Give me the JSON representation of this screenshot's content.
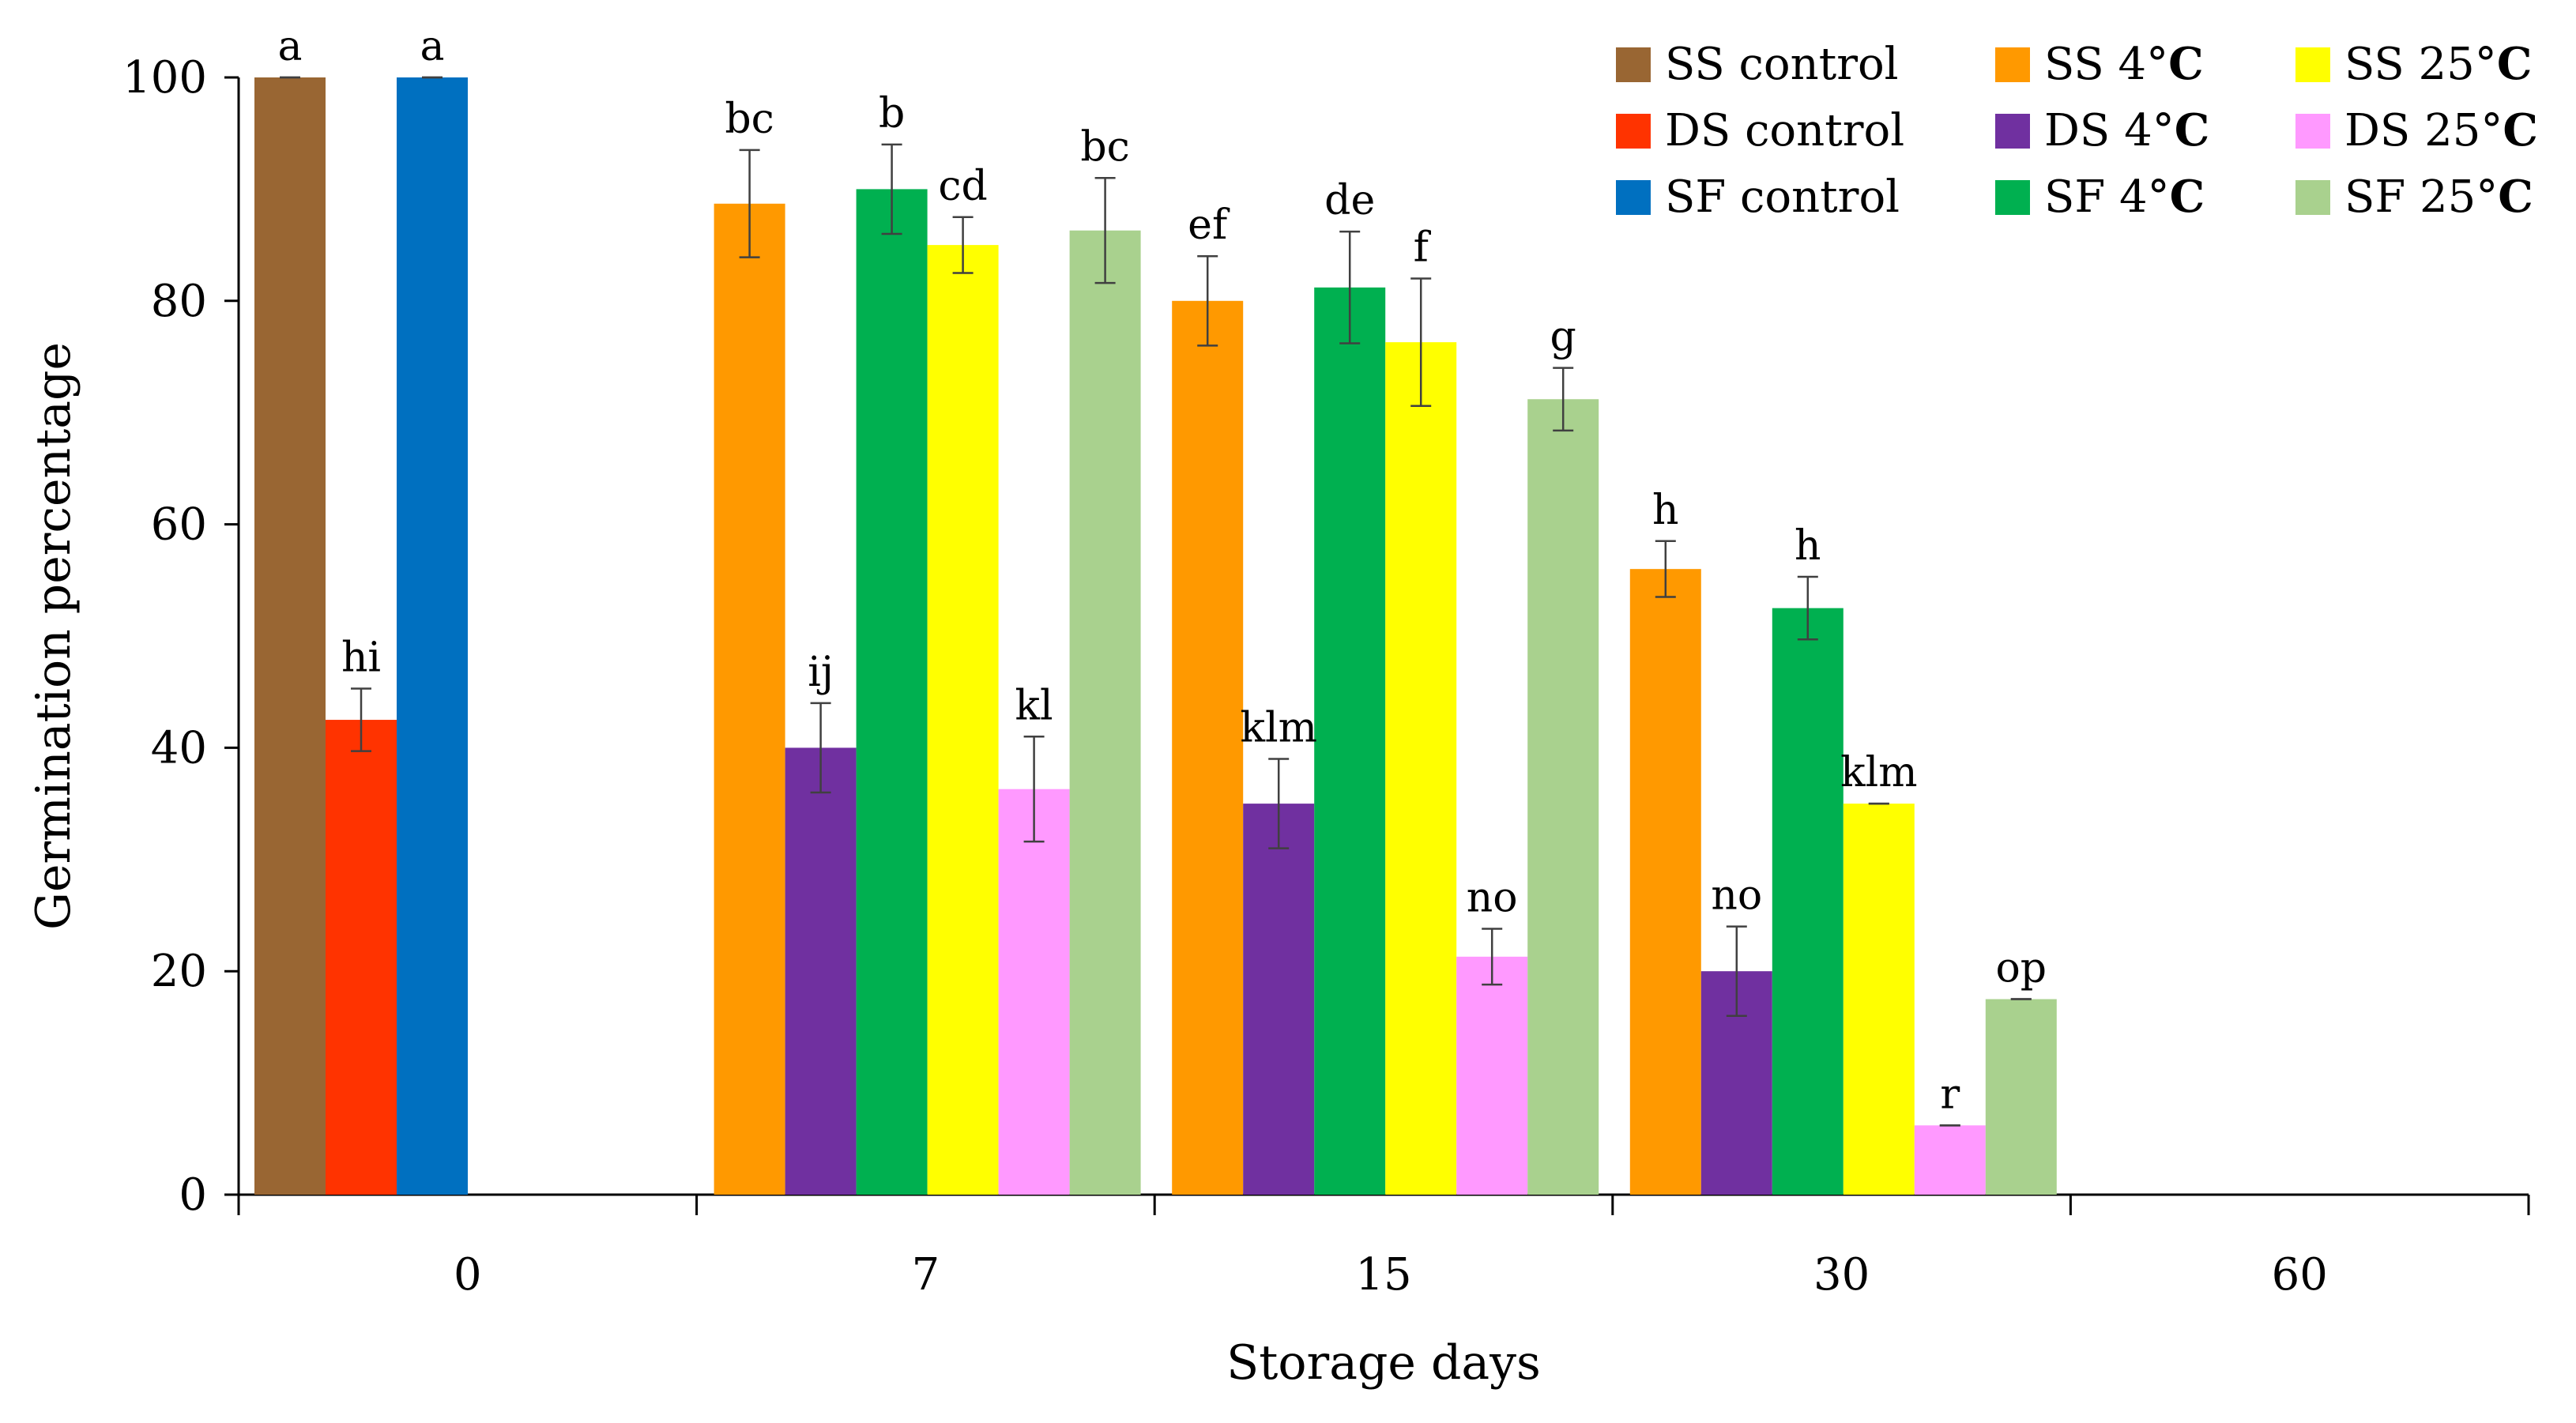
{
  "chart_data": {
    "type": "bar",
    "title": "",
    "xlabel": "Storage days",
    "ylabel": "Germination percentage",
    "ylim": [
      0,
      100
    ],
    "yticks": [
      0,
      20,
      40,
      60,
      80,
      100
    ],
    "grid": false,
    "legend_position": "top-right",
    "categories": [
      "0",
      "7",
      "15",
      "30",
      "60"
    ],
    "series": [
      {
        "name": "SS  control",
        "legend_parts": [
          "SS  control"
        ],
        "color": "#996633",
        "values": [
          100,
          null,
          null,
          null,
          null
        ],
        "errors": [
          0,
          null,
          null,
          null,
          null
        ],
        "letters": [
          "a",
          null,
          null,
          null,
          null
        ]
      },
      {
        "name": "DS control",
        "legend_parts": [
          "DS control"
        ],
        "color": "#ff3300",
        "values": [
          42.5,
          null,
          null,
          null,
          null
        ],
        "errors": [
          2.8,
          null,
          null,
          null,
          null
        ],
        "letters": [
          "hi",
          null,
          null,
          null,
          null
        ]
      },
      {
        "name": "SF  control",
        "legend_parts": [
          "SF  control"
        ],
        "color": "#0070c0",
        "values": [
          100,
          null,
          null,
          null,
          null
        ],
        "errors": [
          0,
          null,
          null,
          null,
          null
        ],
        "letters": [
          "a",
          null,
          null,
          null,
          null
        ]
      },
      {
        "name": "SS  4°C",
        "legend_parts": [
          "SS  4°",
          "C"
        ],
        "color": "#ff9900",
        "values": [
          null,
          88.7,
          80,
          56,
          null
        ],
        "errors": [
          null,
          4.8,
          4,
          2.5,
          null
        ],
        "letters": [
          null,
          "bc",
          "ef",
          "h",
          null
        ]
      },
      {
        "name": "DS  4°C",
        "legend_parts": [
          "DS  4°",
          "C"
        ],
        "color": "#7030a0",
        "values": [
          null,
          40,
          35,
          20,
          null
        ],
        "errors": [
          null,
          4,
          4,
          4,
          null
        ],
        "letters": [
          null,
          "ij",
          "klm",
          "no",
          null
        ]
      },
      {
        "name": "SF  4°C",
        "legend_parts": [
          "SF  4°",
          "C"
        ],
        "color": "#00b050",
        "values": [
          null,
          90,
          81.2,
          52.5,
          null
        ],
        "errors": [
          null,
          4,
          5,
          2.8,
          null
        ],
        "letters": [
          null,
          "b",
          "de",
          "h",
          null
        ]
      },
      {
        "name": "SS  25°C",
        "legend_parts": [
          "SS  25°",
          "C"
        ],
        "color": "#ffff00",
        "values": [
          null,
          85,
          76.3,
          35,
          null
        ],
        "errors": [
          null,
          2.5,
          5.7,
          0,
          null
        ],
        "letters": [
          null,
          "cd",
          "f",
          "klm",
          null
        ]
      },
      {
        "name": "DS  25°C",
        "legend_parts": [
          "DS  25°",
          "C"
        ],
        "color": "#ff99ff",
        "values": [
          null,
          36.3,
          21.3,
          6.2,
          null
        ],
        "errors": [
          null,
          4.7,
          2.5,
          0,
          null
        ],
        "letters": [
          null,
          "kl",
          "no",
          "r",
          null
        ]
      },
      {
        "name": "SF  25°C",
        "legend_parts": [
          "SF  25°",
          "C"
        ],
        "color": "#a9d18e",
        "values": [
          null,
          86.3,
          71.2,
          17.5,
          null
        ],
        "errors": [
          null,
          4.7,
          2.8,
          0,
          null
        ],
        "letters": [
          null,
          "bc",
          "g",
          "op",
          null
        ]
      }
    ]
  }
}
